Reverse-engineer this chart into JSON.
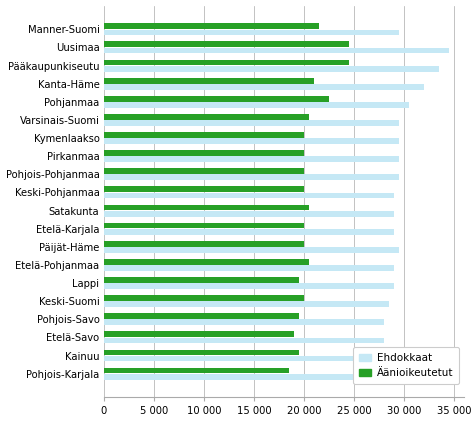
{
  "categories": [
    "Manner-Suomi",
    "Uusimaa",
    "Pääkaupunkiseutu",
    "Kanta-Häme",
    "Pohjanmaa",
    "Varsinais-Suomi",
    "Kymenlaakso",
    "Pirkanmaa",
    "Pohjois-Pohjanmaa",
    "Keski-Pohjanmaa",
    "Satakunta",
    "Etelä-Karjala",
    "Päijät-Häme",
    "Etelä-Pohjanmaa",
    "Lappi",
    "Keski-Suomi",
    "Pohjois-Savo",
    "Etelä-Savo",
    "Kainuu",
    "Pohjois-Karjala"
  ],
  "ehdokkaat": [
    29500,
    34500,
    33500,
    32000,
    30500,
    29500,
    29500,
    29500,
    29500,
    29000,
    29000,
    29000,
    29500,
    29000,
    29000,
    28500,
    28000,
    28000,
    28000,
    25000
  ],
  "aanioikeutetut": [
    21500,
    24500,
    24500,
    21000,
    22500,
    20500,
    20000,
    20000,
    20000,
    20000,
    20500,
    20000,
    20000,
    20500,
    19500,
    20000,
    19500,
    19000,
    19500,
    18500
  ],
  "ehdokkaat_color": "#c5e8f5",
  "aanioikeutetut_color": "#27a026",
  "background_color": "#ffffff",
  "xlim": [
    0,
    36000
  ],
  "xticks": [
    0,
    5000,
    10000,
    15000,
    20000,
    25000,
    30000,
    35000
  ],
  "xticklabels": [
    "0",
    "5 000",
    "10 000",
    "15 000",
    "20 000",
    "25 000",
    "30 000",
    "35 000"
  ],
  "legend_labels": [
    "Ehdokkaat",
    "Äänioikeutetut"
  ],
  "grid_color": "#aaaaaa"
}
